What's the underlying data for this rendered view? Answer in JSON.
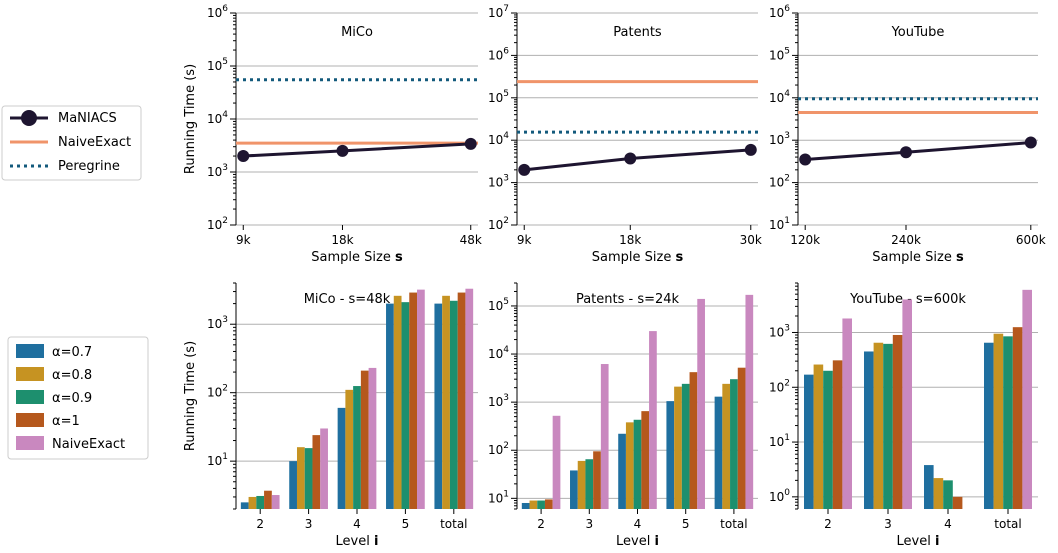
{
  "chart_data": [
    {
      "type": "line",
      "title": "MiCo",
      "xlabel": "Sample Size",
      "xlabel_bold": "s",
      "ylabel": "Running Time (s)",
      "x": [
        "9k",
        "18k",
        "48k"
      ],
      "yscale": "log",
      "ylim": [
        100,
        1000000
      ],
      "ytick_exponents": [
        "2",
        "3",
        "4",
        "5",
        "6"
      ],
      "grid": true,
      "series": [
        {
          "name": "MaNIACS",
          "values": [
            2000,
            2500,
            3400
          ]
        },
        {
          "name": "NaiveExact",
          "values": [
            3500,
            3500,
            3500
          ]
        },
        {
          "name": "Peregrine",
          "values": [
            55000,
            55000,
            55000
          ]
        }
      ]
    },
    {
      "type": "line",
      "title": "Patents",
      "xlabel": "Sample Size",
      "xlabel_bold": "s",
      "ylabel": "",
      "x": [
        "9k",
        "18k",
        "30k"
      ],
      "yscale": "log",
      "ylim": [
        100,
        10000000
      ],
      "ytick_exponents": [
        "2",
        "3",
        "4",
        "5",
        "6",
        "7"
      ],
      "grid": true,
      "series": [
        {
          "name": "MaNIACS",
          "values": [
            2000,
            3700,
            5900
          ]
        },
        {
          "name": "NaiveExact",
          "values": [
            240000,
            240000,
            240000
          ]
        },
        {
          "name": "Peregrine",
          "values": [
            15500,
            15500,
            15500
          ]
        }
      ]
    },
    {
      "type": "line",
      "title": "YouTube",
      "xlabel": "Sample Size",
      "xlabel_bold": "s",
      "ylabel": "",
      "x": [
        "120k",
        "240k",
        "600k"
      ],
      "yscale": "log",
      "ylim": [
        10,
        1000000
      ],
      "ytick_exponents": [
        "1",
        "2",
        "3",
        "4",
        "5",
        "6"
      ],
      "grid": true,
      "series": [
        {
          "name": "MaNIACS",
          "values": [
            350,
            520,
            880
          ]
        },
        {
          "name": "NaiveExact",
          "values": [
            4500,
            4500,
            4500
          ]
        },
        {
          "name": "Peregrine",
          "values": [
            9500,
            9500,
            9500
          ]
        }
      ]
    },
    {
      "type": "bar",
      "title": "MiCo - s=48k",
      "xlabel": "Level",
      "xlabel_bold": "i",
      "ylabel": "Running Time (s)",
      "categories": [
        "2",
        "3",
        "4",
        "5",
        "total"
      ],
      "yscale": "log",
      "ylim": [
        2,
        4000
      ],
      "ytick_exponents": [
        "1",
        "2",
        "3"
      ],
      "grid": true,
      "series": [
        {
          "name": "α=0.7",
          "values": [
            2.5,
            10,
            60,
            2000,
            2000
          ]
        },
        {
          "name": "α=0.8",
          "values": [
            3,
            16,
            110,
            2600,
            2600
          ]
        },
        {
          "name": "α=0.9",
          "values": [
            3.1,
            15.5,
            125,
            2100,
            2200
          ]
        },
        {
          "name": "α=1",
          "values": [
            3.7,
            24,
            210,
            2900,
            2900
          ]
        },
        {
          "name": "NaiveExact",
          "values": [
            3.2,
            30,
            230,
            3200,
            3300
          ]
        }
      ]
    },
    {
      "type": "bar",
      "title": "Patents - s=24k",
      "xlabel": "Level",
      "xlabel_bold": "i",
      "ylabel": "",
      "categories": [
        "2",
        "3",
        "4",
        "5",
        "total"
      ],
      "yscale": "log",
      "ylim": [
        6,
        300000
      ],
      "ytick_exponents": [
        "1",
        "2",
        "3",
        "4",
        "5"
      ],
      "grid": true,
      "series": [
        {
          "name": "α=0.7",
          "values": [
            8,
            38,
            220,
            1050,
            1300
          ]
        },
        {
          "name": "α=0.8",
          "values": [
            9,
            60,
            380,
            2100,
            2400
          ]
        },
        {
          "name": "α=0.9",
          "values": [
            9,
            65,
            430,
            2400,
            3000
          ]
        },
        {
          "name": "α=1",
          "values": [
            9.5,
            95,
            650,
            4200,
            5200
          ]
        },
        {
          "name": "NaiveExact",
          "values": [
            520,
            6200,
            30000,
            140000,
            170000
          ]
        }
      ]
    },
    {
      "type": "bar",
      "title": "YouTube - s=600k",
      "xlabel": "Level",
      "xlabel_bold": "i",
      "ylabel": "",
      "categories": [
        "2",
        "3",
        "4",
        "total"
      ],
      "yscale": "log",
      "ylim": [
        0.6,
        8000
      ],
      "ytick_exponents": [
        "0",
        "1",
        "2",
        "3"
      ],
      "grid": true,
      "series": [
        {
          "name": "α=0.7",
          "values": [
            170,
            450,
            3.8,
            650
          ]
        },
        {
          "name": "α=0.8",
          "values": [
            260,
            650,
            2.2,
            950
          ]
        },
        {
          "name": "α=0.9",
          "values": [
            200,
            620,
            2.0,
            850
          ]
        },
        {
          "name": "α=1",
          "values": [
            310,
            900,
            1.0,
            1250
          ]
        },
        {
          "name": "NaiveExact",
          "values": [
            1800,
            4000,
            0,
            6000
          ]
        }
      ]
    }
  ],
  "legend_top": [
    {
      "label": "MaNIACS",
      "color": "#1e1530",
      "style": "solid-marker"
    },
    {
      "label": "NaiveExact",
      "color": "#f0946a",
      "style": "solid"
    },
    {
      "label": "Peregrine",
      "color": "#135a7c",
      "style": "dotted"
    }
  ],
  "legend_bottom": [
    {
      "label": "α=0.7",
      "color": "#1f6f9f"
    },
    {
      "label": "α=0.8",
      "color": "#c69322"
    },
    {
      "label": "α=0.9",
      "color": "#1d8f6e"
    },
    {
      "label": "α=1",
      "color": "#b5581d"
    },
    {
      "label": "NaiveExact",
      "color": "#c988bf"
    }
  ],
  "colors": {
    "maniacs": "#1e1530",
    "naive": "#f0946a",
    "peregrine": "#135a7c",
    "bars": [
      "#1f6f9f",
      "#c69322",
      "#1d8f6e",
      "#b5581d",
      "#c988bf"
    ]
  }
}
